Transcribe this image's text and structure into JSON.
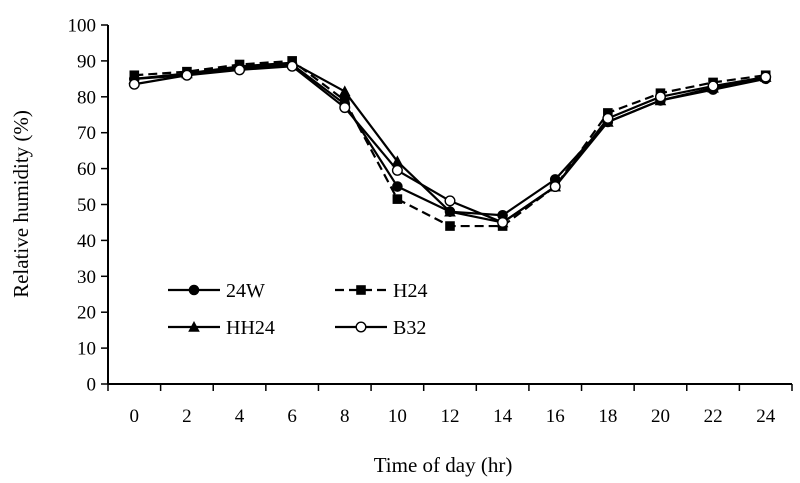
{
  "chart_data": {
    "type": "line",
    "title": "",
    "xlabel": "Time of day (hr)",
    "ylabel": "Relative humidity (%)",
    "x": [
      0,
      2,
      4,
      6,
      8,
      10,
      12,
      14,
      16,
      18,
      20,
      22,
      24
    ],
    "xlim": [
      -1,
      25
    ],
    "ylim": [
      0,
      100
    ],
    "xticks": [
      0,
      2,
      4,
      6,
      8,
      10,
      12,
      14,
      16,
      18,
      20,
      22,
      24
    ],
    "yticks": [
      0,
      10,
      20,
      30,
      40,
      50,
      60,
      70,
      80,
      90,
      100
    ],
    "grid": false,
    "legend_position": "bottom-left",
    "series": [
      {
        "name": "24W",
        "marker": "filled-circle",
        "line": "solid",
        "color": "#000000",
        "values": [
          85,
          86,
          88,
          89,
          78,
          55,
          48,
          47,
          57,
          73,
          79,
          82,
          85
        ]
      },
      {
        "name": "H24",
        "marker": "filled-square",
        "line": "dashed",
        "color": "#000000",
        "values": [
          86,
          87,
          89,
          90,
          79,
          51.5,
          44,
          44,
          55,
          75.5,
          81,
          84,
          86
        ]
      },
      {
        "name": "HH24",
        "marker": "filled-triangle",
        "line": "solid",
        "color": "#000000",
        "values": [
          85,
          86.5,
          88.5,
          89.5,
          81.5,
          62,
          48,
          45,
          55,
          73,
          79,
          82.5,
          85.5
        ]
      },
      {
        "name": "B32",
        "marker": "open-circle",
        "line": "solid",
        "color": "#000000",
        "values": [
          83.5,
          86,
          87.5,
          88.5,
          77,
          59.5,
          51,
          45,
          55,
          74,
          80,
          83,
          85.5
        ]
      }
    ]
  }
}
